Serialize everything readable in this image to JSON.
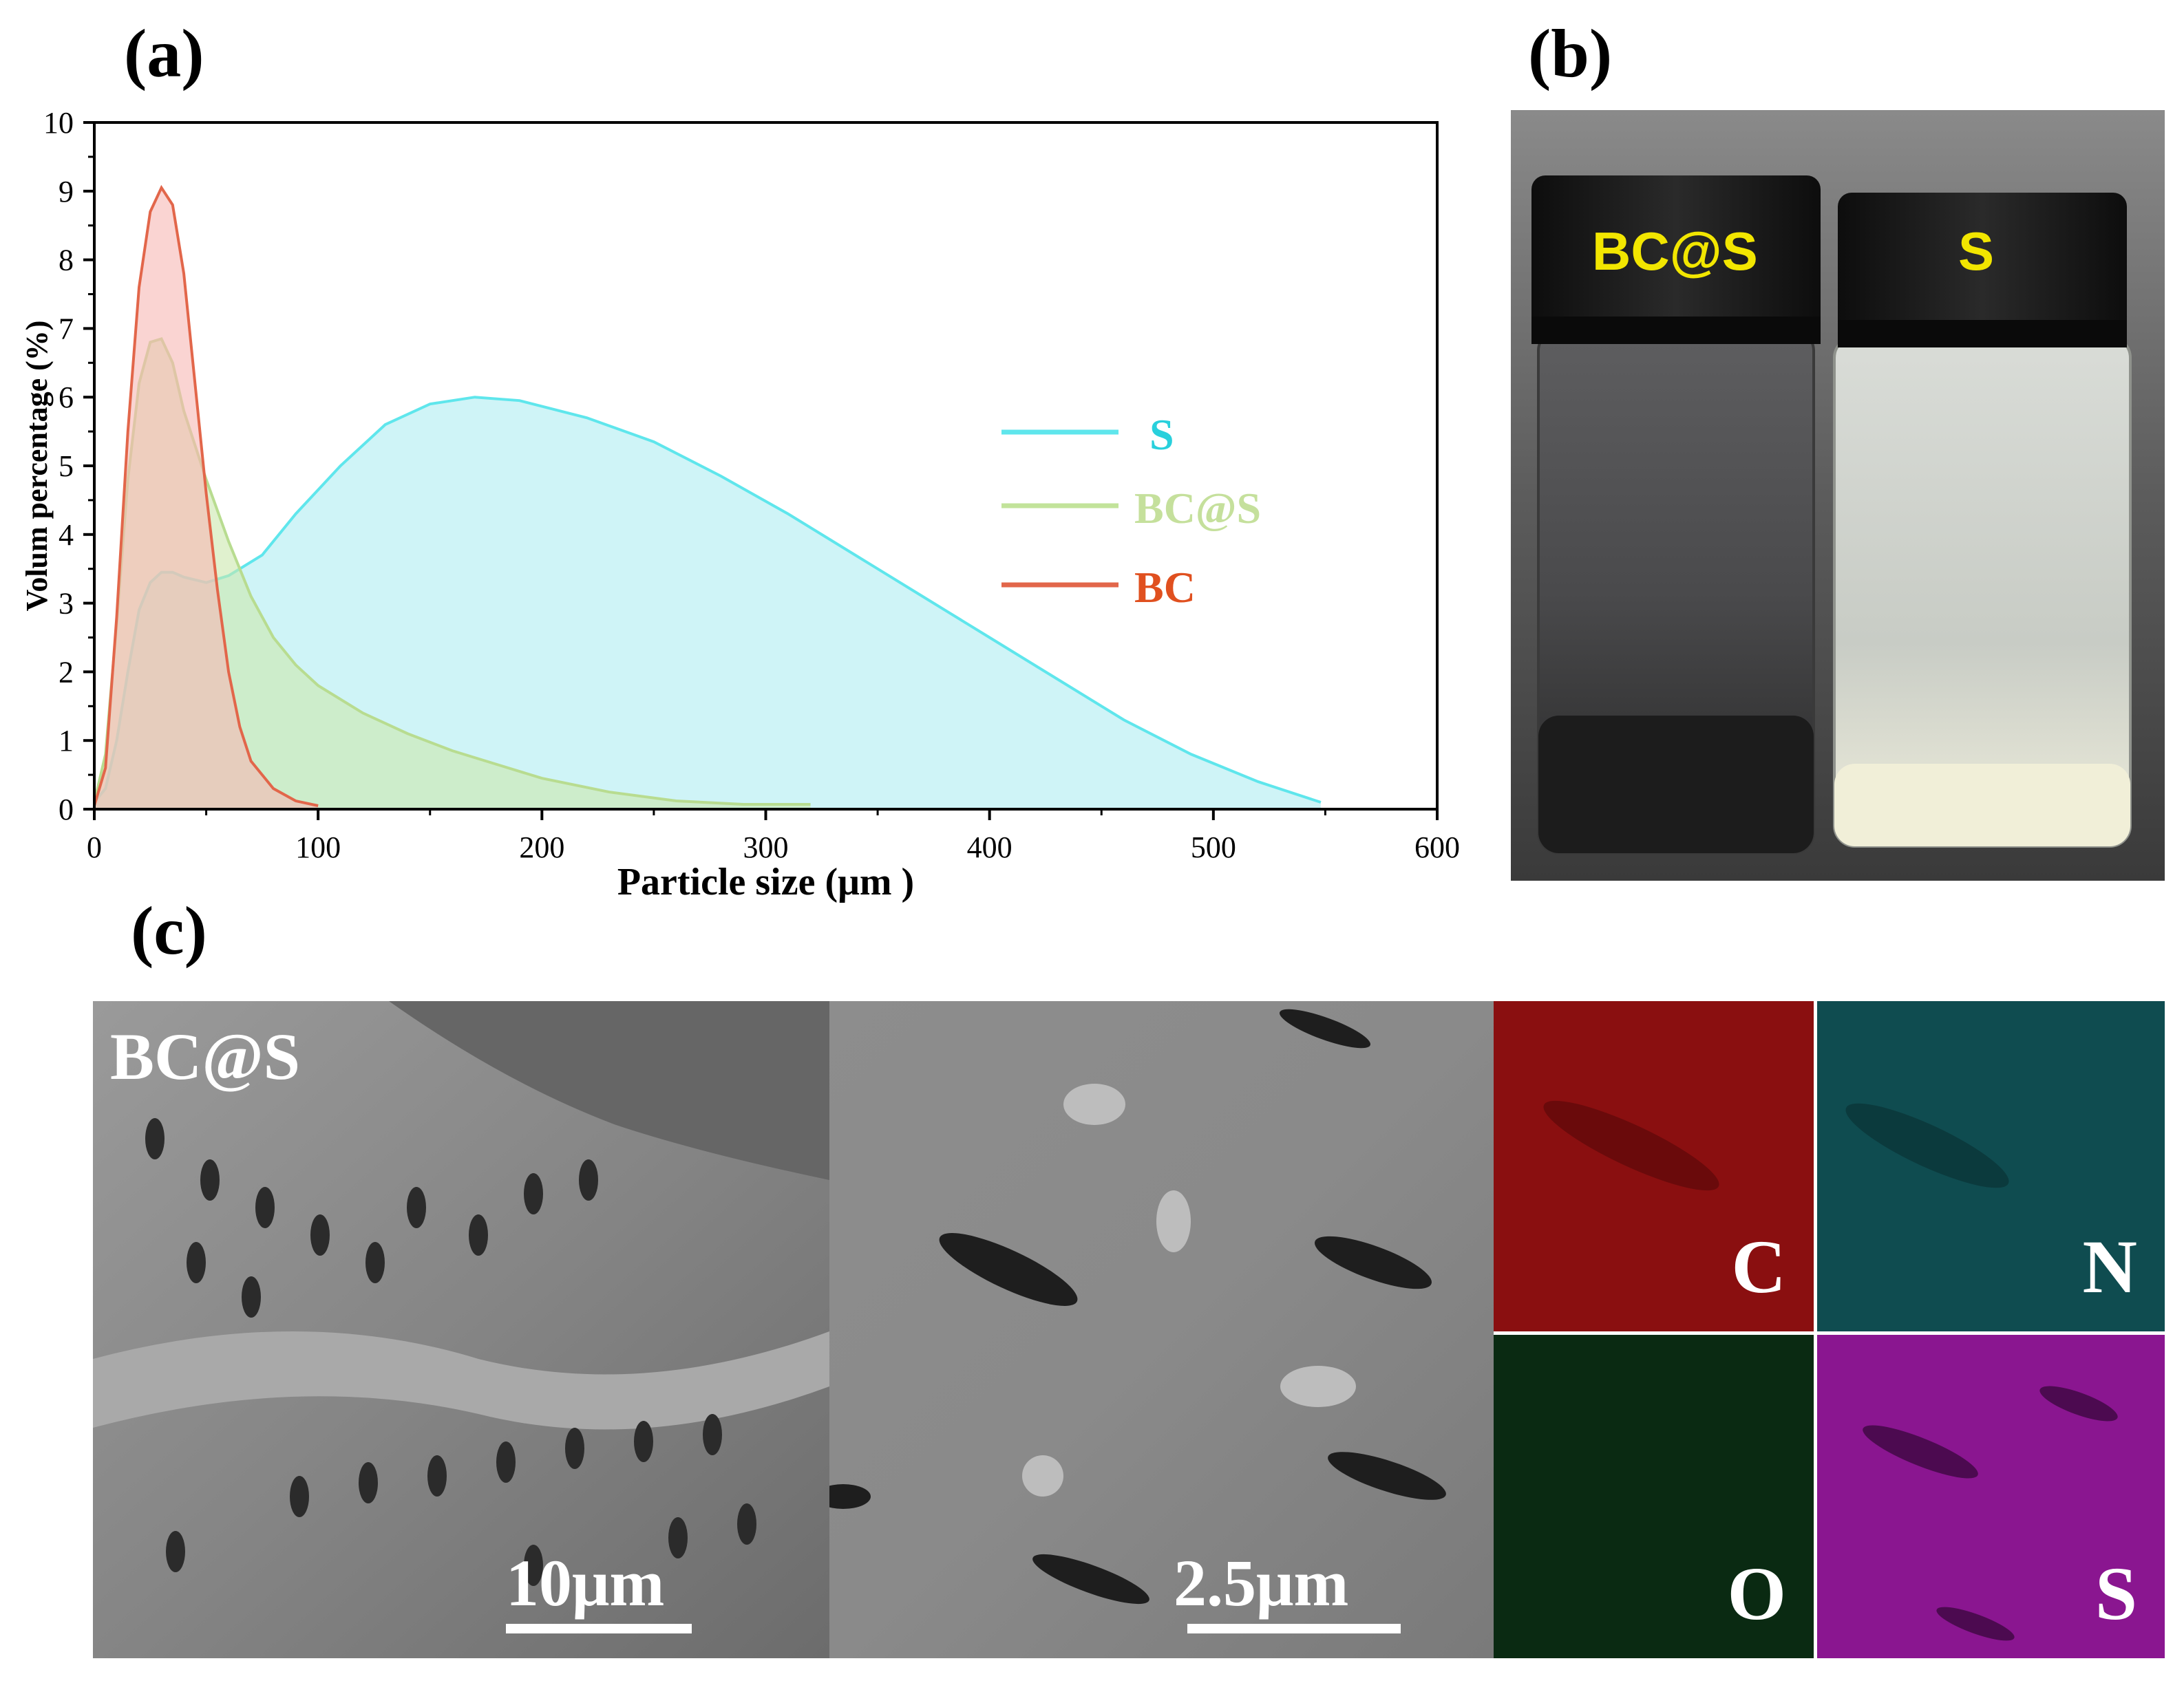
{
  "panels": {
    "a": "(a)",
    "b": "(b)",
    "c": "(c)"
  },
  "chart_data": {
    "type": "area",
    "title": "",
    "xlabel": "Particle size (μm )",
    "ylabel": "Volum percentage (%)",
    "xlim": [
      0,
      600
    ],
    "ylim": [
      0,
      10
    ],
    "xticks": [
      "0",
      "100",
      "200",
      "300",
      "400",
      "500",
      "600"
    ],
    "yticks": [
      "0",
      "1",
      "2",
      "3",
      "4",
      "5",
      "6",
      "7",
      "8",
      "9",
      "10"
    ],
    "legend_position": "right",
    "series": [
      {
        "name": "S",
        "color": "#5fe6ec",
        "fill": "#bff0f4",
        "points": [
          [
            0,
            0.1
          ],
          [
            5,
            0.3
          ],
          [
            10,
            1.0
          ],
          [
            15,
            2.0
          ],
          [
            20,
            2.9
          ],
          [
            25,
            3.3
          ],
          [
            30,
            3.45
          ],
          [
            35,
            3.45
          ],
          [
            40,
            3.38
          ],
          [
            50,
            3.3
          ],
          [
            60,
            3.4
          ],
          [
            75,
            3.7
          ],
          [
            90,
            4.3
          ],
          [
            110,
            5.0
          ],
          [
            130,
            5.6
          ],
          [
            150,
            5.9
          ],
          [
            170,
            6.0
          ],
          [
            190,
            5.95
          ],
          [
            220,
            5.7
          ],
          [
            250,
            5.35
          ],
          [
            280,
            4.85
          ],
          [
            310,
            4.3
          ],
          [
            340,
            3.7
          ],
          [
            370,
            3.1
          ],
          [
            400,
            2.5
          ],
          [
            430,
            1.9
          ],
          [
            460,
            1.3
          ],
          [
            490,
            0.8
          ],
          [
            520,
            0.4
          ],
          [
            548,
            0.1
          ]
        ]
      },
      {
        "name": "BC@S",
        "color": "#b8dc90",
        "fill": "#cbe7ad",
        "points": [
          [
            0,
            0.1
          ],
          [
            5,
            0.8
          ],
          [
            10,
            2.7
          ],
          [
            15,
            4.8
          ],
          [
            20,
            6.2
          ],
          [
            25,
            6.8
          ],
          [
            30,
            6.85
          ],
          [
            35,
            6.5
          ],
          [
            40,
            5.8
          ],
          [
            50,
            4.8
          ],
          [
            60,
            3.9
          ],
          [
            70,
            3.1
          ],
          [
            80,
            2.5
          ],
          [
            90,
            2.1
          ],
          [
            100,
            1.8
          ],
          [
            120,
            1.4
          ],
          [
            140,
            1.1
          ],
          [
            160,
            0.85
          ],
          [
            180,
            0.65
          ],
          [
            200,
            0.45
          ],
          [
            230,
            0.25
          ],
          [
            260,
            0.12
          ],
          [
            290,
            0.07
          ],
          [
            320,
            0.07
          ]
        ]
      },
      {
        "name": "BC",
        "color": "#e2664a",
        "fill": "#f6b8b4",
        "points": [
          [
            0,
            0.05
          ],
          [
            5,
            0.6
          ],
          [
            10,
            2.8
          ],
          [
            15,
            5.5
          ],
          [
            20,
            7.6
          ],
          [
            25,
            8.7
          ],
          [
            30,
            9.05
          ],
          [
            35,
            8.8
          ],
          [
            40,
            7.8
          ],
          [
            45,
            6.2
          ],
          [
            50,
            4.6
          ],
          [
            55,
            3.2
          ],
          [
            60,
            2.0
          ],
          [
            65,
            1.2
          ],
          [
            70,
            0.7
          ],
          [
            80,
            0.3
          ],
          [
            90,
            0.12
          ],
          [
            100,
            0.05
          ]
        ]
      }
    ]
  },
  "photo": {
    "cap_left": "BC@S",
    "cap_right": "S"
  },
  "sem": {
    "left_label": "BC@S",
    "left_scale": "10μm",
    "right_scale": "2.5μm"
  },
  "maps": {
    "c": "C",
    "n": "N",
    "o": "O",
    "s": "S"
  },
  "colors": {
    "map_c": "#8a0f10",
    "map_n": "#0f4c50",
    "map_o": "#0a2a12",
    "map_s": "#8a1690"
  }
}
